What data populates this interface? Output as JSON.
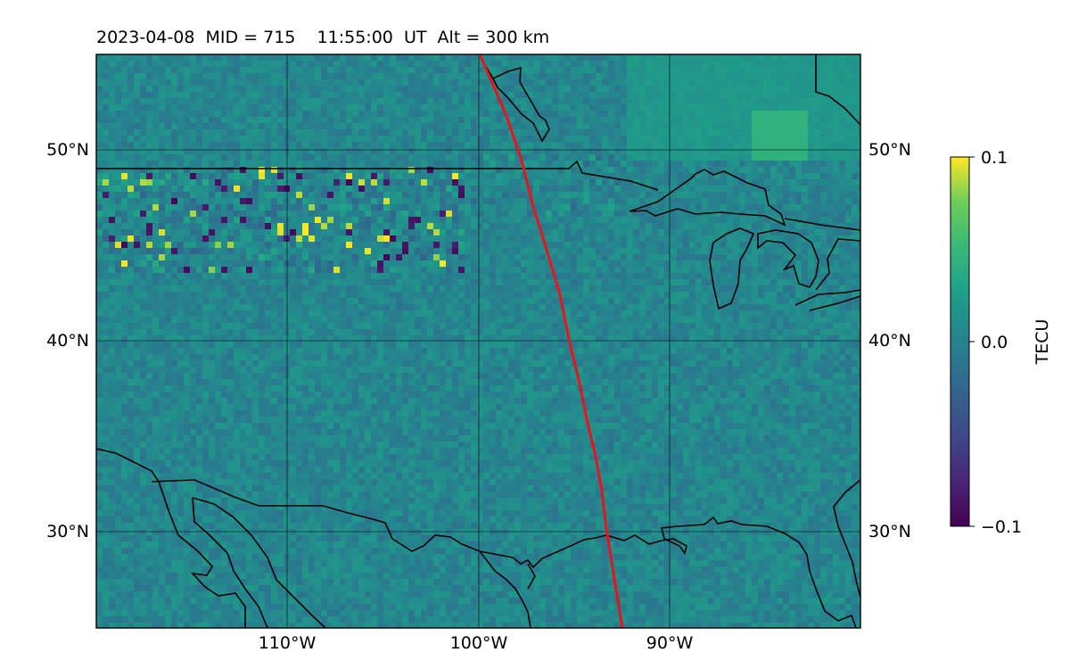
{
  "title": "2023-04-08  MID = 715    11:55:00  UT  Alt = 300 km",
  "map": {
    "lon_range": [
      -120,
      -80
    ],
    "lat_range": [
      25,
      55
    ],
    "lon_ticks": [
      {
        "value": -110,
        "label": "110°W"
      },
      {
        "value": -100,
        "label": "100°W"
      },
      {
        "value": -90,
        "label": "90°W"
      }
    ],
    "lat_ticks": [
      {
        "value": 50,
        "label": "50°N"
      },
      {
        "value": 40,
        "label": "40°N"
      },
      {
        "value": 30,
        "label": "30°N"
      }
    ],
    "eclipse_path_color": "#e8141c",
    "coastline_color": "#000000"
  },
  "colorbar": {
    "label": "TECU",
    "min": -0.1,
    "max": 0.1,
    "ticks": [
      {
        "value": 0.1,
        "label": "0.1"
      },
      {
        "value": 0.0,
        "label": "0.0"
      },
      {
        "value": -0.1,
        "label": "−0.1"
      }
    ],
    "colormap": "viridis"
  }
}
